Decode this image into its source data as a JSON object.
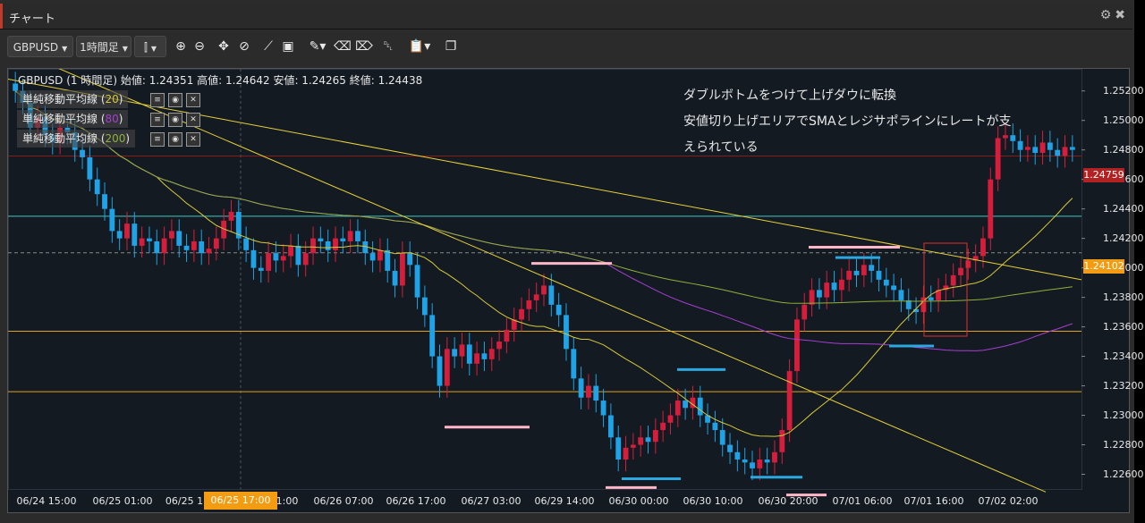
{
  "window": {
    "title": "チャート"
  },
  "toolbar": {
    "symbol": "GBPUSD",
    "timeframe": "1時間足"
  },
  "hud": {
    "text": "GBPUSD (1 時間足) 始値: 1.24351 高値: 1.24642 安値: 1.24265 終値: 1.24438"
  },
  "indicators": [
    {
      "label": "単純移動平均線",
      "period": "20",
      "color": "#d4c93a"
    },
    {
      "label": "単純移動平均線",
      "period": "80",
      "color": "#a63fd1"
    },
    {
      "label": "単純移動平均線",
      "period": "200",
      "color": "#8fb03a"
    }
  ],
  "annotation": {
    "line1": "ダブルボトムをつけて上げダウに転換",
    "line2": "安値切り上げエリアでSMAとレジサポラインにレートが支",
    "line3": "えられている"
  },
  "price_labels": {
    "current": "1.24759",
    "crosshair": "1.24102"
  },
  "crosshair_time": "06/25 17:00",
  "chart_data": {
    "type": "candlestick",
    "symbol": "GBPUSD",
    "timeframe": "1時間足",
    "ylim": [
      1.225,
      1.2535
    ],
    "y_ticks": [
      "1.22600",
      "1.22800",
      "1.23000",
      "1.23200",
      "1.23400",
      "1.23600",
      "1.23800",
      "1.24000",
      "1.24200",
      "1.24400",
      "1.24600",
      "1.24800",
      "1.25000",
      "1.25200"
    ],
    "x_ticks": [
      "06/24 15:00",
      "06/25 01:00",
      "06/25 1",
      "06/25 17:00",
      "1:00",
      "06/26 07:00",
      "06/26 17:00",
      "06/27 03:00",
      "06/29 14:00",
      "06/30 00:00",
      "06/30 10:00",
      "06/30 20:00",
      "07/01 06:00",
      "07/01 16:00",
      "07/02 02:00"
    ],
    "horizontal_lines": [
      {
        "price": 1.24759,
        "color": "#8b1a1a"
      },
      {
        "price": 1.2435,
        "color": "#40c8c0"
      },
      {
        "price": 1.24102,
        "color": "#888888",
        "style": "dashed"
      },
      {
        "price": 1.2357,
        "color": "#e0a020"
      },
      {
        "price": 1.2316,
        "color": "#e0a020"
      }
    ],
    "closes": [
      1.252,
      1.2512,
      1.2495,
      1.2502,
      1.249,
      1.2485,
      1.2495,
      1.2492,
      1.248,
      1.2475,
      1.246,
      1.245,
      1.244,
      1.2425,
      1.242,
      1.243,
      1.2415,
      1.242,
      1.2418,
      1.241,
      1.242,
      1.2425,
      1.2415,
      1.2412,
      1.2418,
      1.241,
      1.2413,
      1.242,
      1.2432,
      1.2438,
      1.242,
      1.2412,
      1.24,
      1.2398,
      1.241,
      1.2405,
      1.2408,
      1.2415,
      1.2402,
      1.241,
      1.242,
      1.2418,
      1.2412,
      1.242,
      1.2418,
      1.2425,
      1.2418,
      1.241,
      1.2405,
      1.2412,
      1.2398,
      1.2388,
      1.241,
      1.2402,
      1.238,
      1.2368,
      1.234,
      1.232,
      1.2345,
      1.234,
      1.2348,
      1.2335,
      1.2342,
      1.2338,
      1.2345,
      1.235,
      1.2358,
      1.2365,
      1.2372,
      1.2378,
      1.2382,
      1.2388,
      1.2375,
      1.2368,
      1.2345,
      1.2325,
      1.2312,
      1.232,
      1.231,
      1.23,
      1.2285,
      1.227,
      1.2278,
      1.228,
      1.2285,
      1.2282,
      1.229,
      1.2295,
      1.23,
      1.231,
      1.2305,
      1.2312,
      1.23,
      1.2295,
      1.229,
      1.228,
      1.2275,
      1.227,
      1.2268,
      1.2264,
      1.227,
      1.2268,
      1.2275,
      1.229,
      1.233,
      1.2365,
      1.2375,
      1.2385,
      1.238,
      1.239,
      1.2385,
      1.2392,
      1.2398,
      1.2395,
      1.2402,
      1.2398,
      1.2392,
      1.2388,
      1.2385,
      1.2378,
      1.2372,
      1.237,
      1.238,
      1.2378,
      1.2385,
      1.2388,
      1.2395,
      1.24,
      1.2405,
      1.2408,
      1.242,
      1.246,
      1.2488,
      1.249,
      1.2486,
      1.248,
      1.2482,
      1.2478,
      1.2485,
      1.248,
      1.2476,
      1.2482,
      1.248
    ]
  }
}
